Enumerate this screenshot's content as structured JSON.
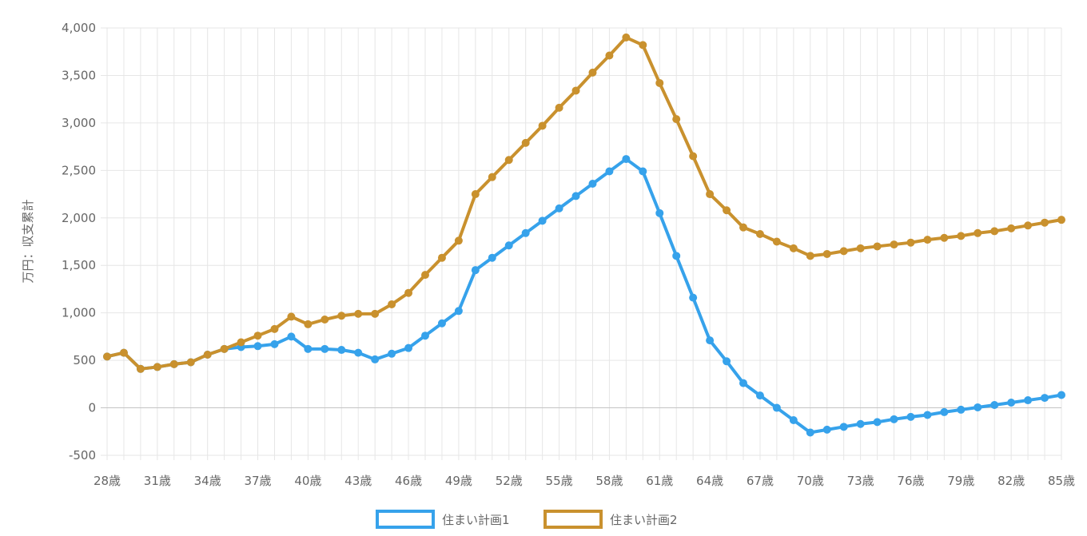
{
  "chart_data": {
    "type": "line",
    "ylabel": "万円：収支累計",
    "ylim": [
      -500,
      4000
    ],
    "xlim": [
      28,
      85
    ],
    "yticks": [
      "-500",
      "0",
      "500",
      "1,000",
      "1,500",
      "2,000",
      "2,500",
      "3,000",
      "3,500",
      "4,000"
    ],
    "ytick_values": [
      -500,
      0,
      500,
      1000,
      1500,
      2000,
      2500,
      3000,
      3500,
      4000
    ],
    "xtick_ages": [
      28,
      31,
      34,
      37,
      40,
      43,
      46,
      49,
      52,
      55,
      58,
      61,
      64,
      67,
      70,
      73,
      76,
      79,
      82,
      85
    ],
    "xtick_labels": [
      "28歳",
      "31歳",
      "34歳",
      "37歳",
      "40歳",
      "43歳",
      "46歳",
      "49歳",
      "52歳",
      "55歳",
      "58歳",
      "61歳",
      "64歳",
      "67歳",
      "70歳",
      "73歳",
      "76歳",
      "79歳",
      "82歳",
      "85歳"
    ],
    "grid": true,
    "legend_position": "bottom",
    "x": [
      28,
      29,
      30,
      31,
      32,
      33,
      34,
      35,
      36,
      37,
      38,
      39,
      40,
      41,
      42,
      43,
      44,
      45,
      46,
      47,
      48,
      49,
      50,
      51,
      52,
      53,
      54,
      55,
      56,
      57,
      58,
      59,
      60,
      61,
      62,
      63,
      64,
      65,
      66,
      67,
      68,
      69,
      70,
      71,
      72,
      73,
      74,
      75,
      76,
      77,
      78,
      79,
      80,
      81,
      82,
      83,
      84,
      85
    ],
    "series": [
      {
        "name": "住まい計画1",
        "color": "#36a2eb",
        "values": [
          540,
          580,
          410,
          430,
          460,
          480,
          560,
          620,
          640,
          650,
          670,
          750,
          620,
          620,
          610,
          580,
          510,
          570,
          630,
          760,
          890,
          1020,
          1450,
          1580,
          1710,
          1840,
          1970,
          2100,
          2230,
          2360,
          2490,
          2620,
          2490,
          2050,
          1600,
          1160,
          710,
          490,
          260,
          130,
          0,
          -130,
          -260,
          -230,
          -200,
          -170,
          -150,
          -120,
          -95,
          -75,
          -45,
          -20,
          5,
          30,
          55,
          80,
          105,
          135
        ]
      },
      {
        "name": "住まい計画2",
        "color": "#c9912e",
        "values": [
          540,
          580,
          410,
          430,
          460,
          480,
          560,
          620,
          690,
          760,
          830,
          960,
          880,
          930,
          970,
          990,
          990,
          1090,
          1210,
          1400,
          1580,
          1760,
          2250,
          2430,
          2610,
          2790,
          2970,
          3160,
          3340,
          3530,
          3710,
          3900,
          3820,
          3420,
          3040,
          2650,
          2250,
          2080,
          1900,
          1830,
          1750,
          1680,
          1600,
          1620,
          1650,
          1680,
          1700,
          1720,
          1740,
          1770,
          1790,
          1810,
          1840,
          1860,
          1890,
          1920,
          1950,
          1980
        ]
      }
    ]
  }
}
